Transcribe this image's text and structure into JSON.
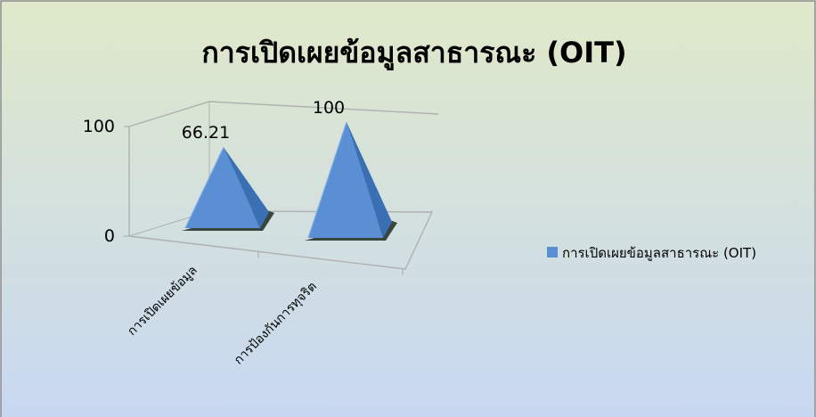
{
  "chart_data": {
    "type": "bar",
    "bar_shape": "3d-pyramid",
    "title": "การเปิดเผยข้อมูลสาธารณะ (OIT)",
    "categories": [
      "การเปิดเผยข้อมูล",
      "การป้องกันการทุจริต"
    ],
    "series": [
      {
        "name": "การเปิดเผยข้อมูลสาธารณะ (OIT)",
        "values": [
          66.21,
          100
        ],
        "data_labels": [
          "66.21",
          "100"
        ]
      }
    ],
    "yticks": [
      "0",
      "100"
    ],
    "ylim": [
      0,
      100
    ],
    "legend_position": "right",
    "grid": false,
    "colors": {
      "series": "#5b8fd3",
      "series_light": "#7eacea",
      "series_dark": "#3b6fb4",
      "background_top": "#dfe9c9",
      "background_bottom": "#c8d8f2",
      "axis": "#b0b0b0",
      "border": "#8a8a8a",
      "text": "#000000"
    }
  }
}
